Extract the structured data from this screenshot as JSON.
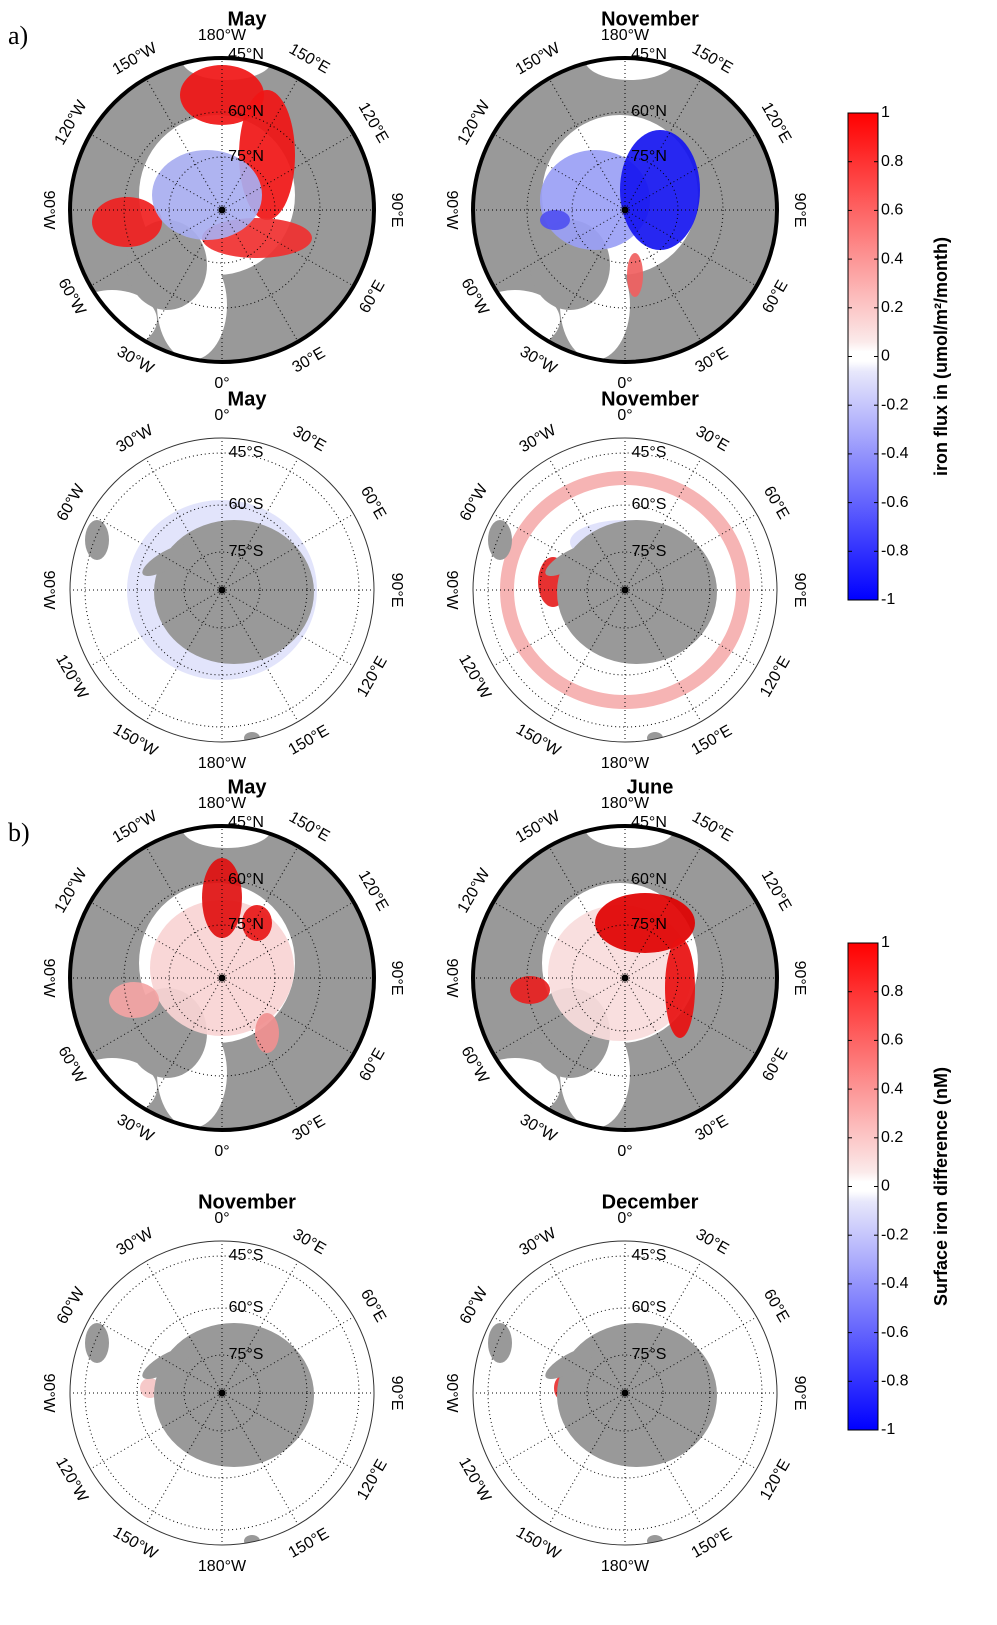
{
  "panels": [
    {
      "label": "a)",
      "maps": [
        {
          "title": "May",
          "lon_labels": [
            "0°",
            "30°E",
            "60°E",
            "90°E",
            "120°E",
            "150°E",
            "180°W",
            "150°W",
            "120°W",
            "90°W",
            "60°W",
            "30°W"
          ],
          "lat_labels": [
            "45°N",
            "60°N",
            "75°N"
          ]
        },
        {
          "title": "November",
          "lon_labels": [
            "0°",
            "30°E",
            "60°E",
            "90°E",
            "120°E",
            "150°E",
            "180°W",
            "150°W",
            "120°W",
            "90°W",
            "60°W",
            "30°W"
          ],
          "lat_labels": [
            "45°N",
            "60°N",
            "75°N"
          ]
        },
        {
          "title": "May",
          "lon_labels": [
            "0°",
            "30°E",
            "60°E",
            "90°E",
            "120°E",
            "150°E",
            "180°W",
            "150°W",
            "120°W",
            "90°W",
            "60°W",
            "30°W"
          ],
          "lat_labels": [
            "45°S",
            "60°S",
            "75°S"
          ]
        },
        {
          "title": "November",
          "lon_labels": [
            "0°",
            "30°E",
            "60°E",
            "90°E",
            "120°E",
            "150°E",
            "180°W",
            "150°W",
            "120°W",
            "90°W",
            "60°W",
            "30°W"
          ],
          "lat_labels": [
            "45°S",
            "60°S",
            "75°S"
          ]
        }
      ],
      "colorbar": {
        "label": "iron flux in (umol/m²/month)",
        "lim": [
          -1,
          1
        ],
        "ticks": [
          1,
          0.8,
          0.6,
          0.4,
          0.2,
          0,
          -0.2,
          -0.4,
          -0.6,
          -0.8,
          -1
        ]
      }
    },
    {
      "label": "b)",
      "maps": [
        {
          "title": "May",
          "lon_labels": [
            "0°",
            "30°E",
            "60°E",
            "90°E",
            "120°E",
            "150°E",
            "180°W",
            "150°W",
            "120°W",
            "90°W",
            "60°W",
            "30°W"
          ],
          "lat_labels": [
            "45°N",
            "60°N",
            "75°N"
          ]
        },
        {
          "title": "June",
          "lon_labels": [
            "0°",
            "30°E",
            "60°E",
            "90°E",
            "120°E",
            "150°E",
            "180°W",
            "150°W",
            "120°W",
            "90°W",
            "60°W",
            "30°W"
          ],
          "lat_labels": [
            "45°N",
            "60°N",
            "75°N"
          ]
        },
        {
          "title": "November",
          "lon_labels": [
            "0°",
            "30°E",
            "60°E",
            "90°E",
            "120°E",
            "150°E",
            "180°W",
            "150°W",
            "120°W",
            "90°W",
            "60°W",
            "30°W"
          ],
          "lat_labels": [
            "45°S",
            "60°S",
            "75°S"
          ]
        },
        {
          "title": "December",
          "lon_labels": [
            "0°",
            "30°E",
            "60°E",
            "90°E",
            "120°E",
            "150°E",
            "180°W",
            "150°W",
            "120°W",
            "90°W",
            "60°W",
            "30°W"
          ],
          "lat_labels": [
            "45°S",
            "60°S",
            "75°S"
          ]
        }
      ],
      "colorbar": {
        "label": "Surface iron difference (nM)",
        "lim": [
          -1,
          1
        ],
        "ticks": [
          1,
          0.8,
          0.6,
          0.4,
          0.2,
          0,
          -0.2,
          -0.4,
          -0.6,
          -0.8,
          -1
        ]
      }
    }
  ]
}
